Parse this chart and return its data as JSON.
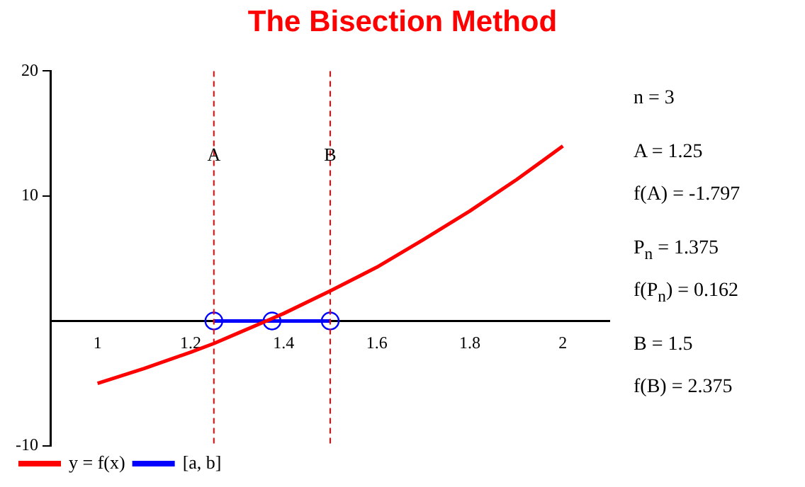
{
  "chart_data": {
    "type": "line",
    "title": "The Bisection Method",
    "xlim": [
      0.9,
      2.1
    ],
    "xticks": [
      1,
      1.2,
      1.4,
      1.6,
      1.8,
      2
    ],
    "ylim": [
      -10,
      20
    ],
    "yticks": [
      -10,
      10,
      20
    ],
    "series": [
      {
        "name": "y = f(x)",
        "color": "#ff0000",
        "marker": "none",
        "x": [
          1,
          1.1,
          1.2,
          1.25,
          1.3,
          1.375,
          1.4,
          1.5,
          1.6,
          1.7,
          1.8,
          1.9,
          2
        ],
        "values": [
          -5,
          -3.8,
          -2.5,
          -1.8,
          -1.0,
          0.2,
          0.6,
          2.4,
          4.3,
          6.5,
          8.8,
          11.3,
          14
        ]
      },
      {
        "name": "[a, b]",
        "color": "#0000ff",
        "marker": "circle",
        "x": [
          1.25,
          1.375,
          1.5
        ],
        "values": [
          0,
          0,
          0
        ]
      }
    ],
    "ref_lines": [
      {
        "axis": "x",
        "value": 1.25,
        "label": "A",
        "color": "#ff0000",
        "line_style": "dashed"
      },
      {
        "axis": "x",
        "value": 1.5,
        "label": "B",
        "color": "#ff0000",
        "line_style": "dashed"
      }
    ],
    "legend": "bottom left",
    "grid": false,
    "annotations": [
      "n = 3",
      "A = 1.25",
      "f(A) = -1.797",
      "P$_{n}$ = 1.375",
      "f(P$_{n}$) = 0.162",
      "B = 1.5",
      "f(B) = 2.375"
    ]
  }
}
